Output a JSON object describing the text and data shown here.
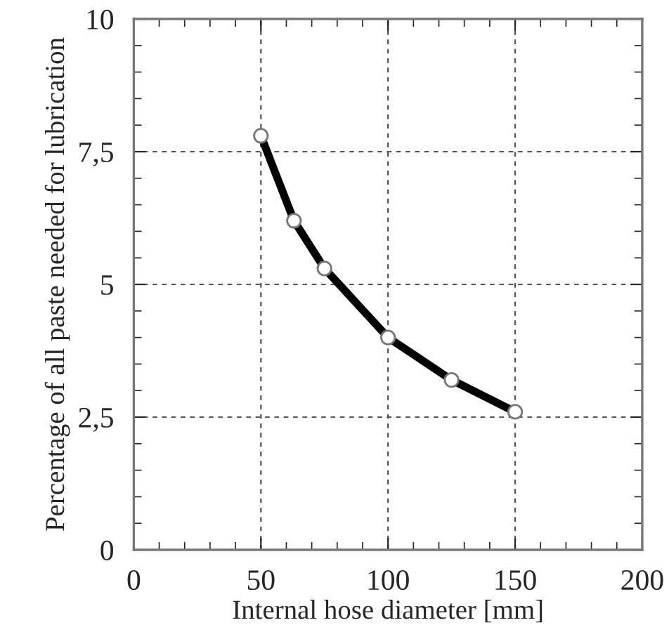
{
  "chart_data": {
    "type": "line",
    "xlabel": "Internal hose diameter [mm]",
    "ylabel": "Percentage of all paste needed for lubrication",
    "x": [
      50,
      63,
      75,
      100,
      125,
      150
    ],
    "series": [
      {
        "color": "#000000",
        "values": [
          7.8,
          6.2,
          5.3,
          4.0,
          3.2,
          2.6
        ]
      }
    ],
    "xlim": [
      0,
      200
    ],
    "xticks": [
      0,
      50,
      100,
      150,
      200
    ],
    "ylim": [
      0,
      10
    ],
    "yticks": [
      0,
      {
        "value": 2.5,
        "label": "2,5"
      },
      5,
      {
        "value": 7.5,
        "label": "7,5"
      },
      10
    ],
    "grid": true,
    "marker": "circle",
    "line_style": "solid",
    "legend": false
  }
}
